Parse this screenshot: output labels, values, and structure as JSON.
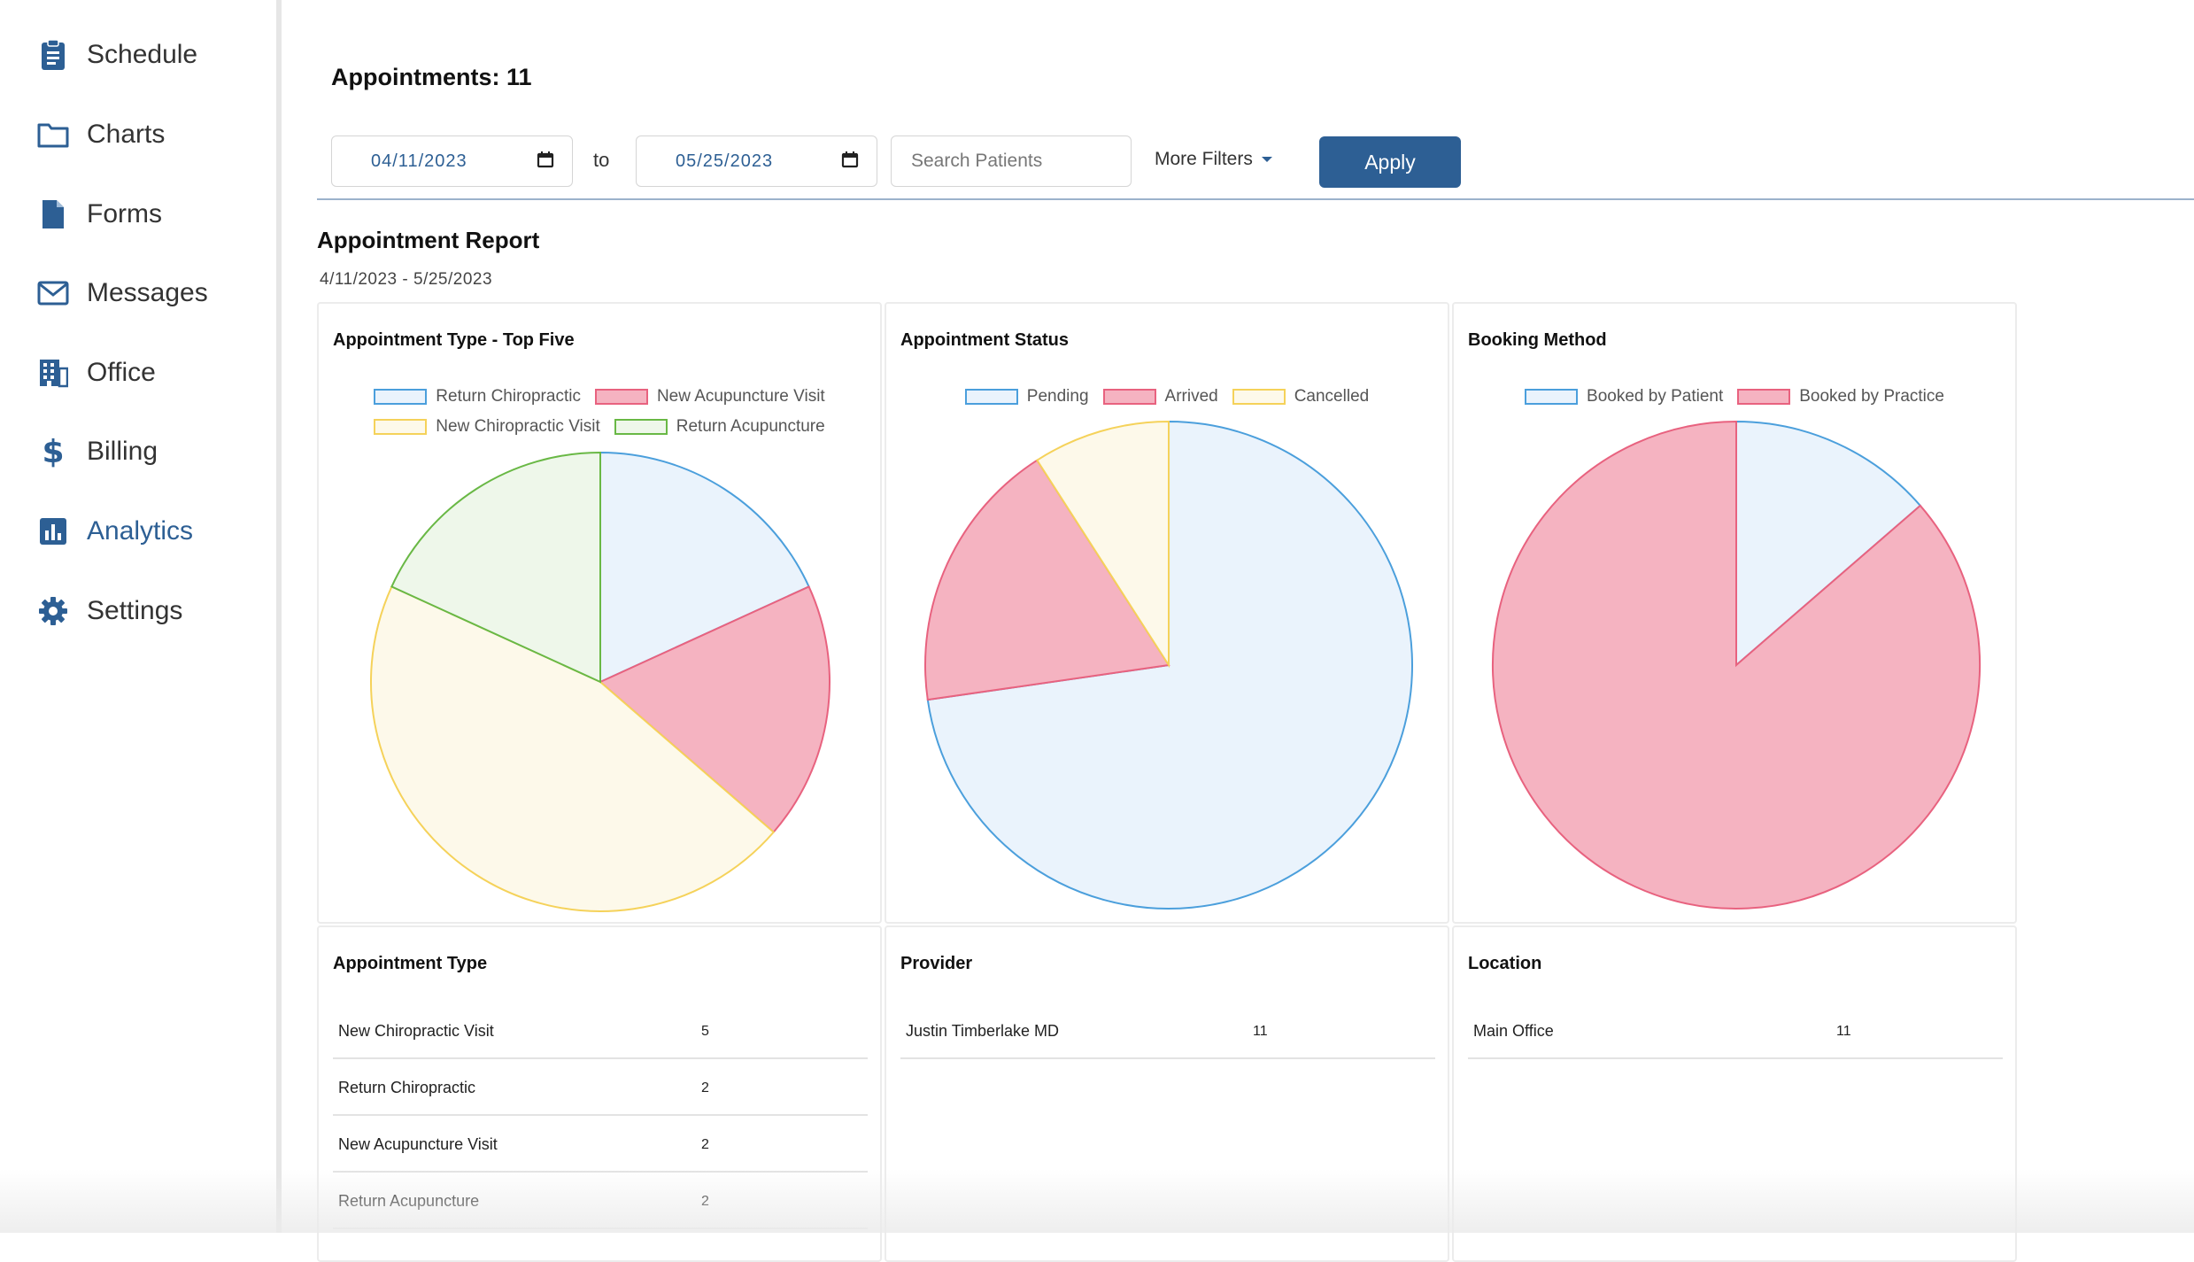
{
  "sidebar": {
    "items": [
      {
        "label": "Schedule",
        "icon": "clipboard-icon",
        "active": false
      },
      {
        "label": "Charts",
        "icon": "folder-icon",
        "active": false
      },
      {
        "label": "Forms",
        "icon": "document-icon",
        "active": false
      },
      {
        "label": "Messages",
        "icon": "envelope-icon",
        "active": false
      },
      {
        "label": "Office",
        "icon": "building-icon",
        "active": false
      },
      {
        "label": "Billing",
        "icon": "dollar-icon",
        "active": false
      },
      {
        "label": "Analytics",
        "icon": "bar-chart-icon",
        "active": true
      },
      {
        "label": "Settings",
        "icon": "gear-icon",
        "active": false
      }
    ]
  },
  "header": {
    "title": "Appointments: 11"
  },
  "filters": {
    "start_date": "04/11/2023",
    "to_label": "to",
    "end_date": "05/25/2023",
    "search_placeholder": "Search Patients",
    "more_filters_label": "More Filters",
    "apply_label": "Apply"
  },
  "report": {
    "title": "Appointment Report",
    "range": "4/11/2023 - 5/25/2023"
  },
  "colors": {
    "accent": "#2d5f94",
    "blue_fill": "#eaf3fc",
    "blue_stroke": "#4b9fdc",
    "pink_fill": "#f5b3c1",
    "pink_stroke": "#e8627f",
    "yellow_fill": "#fdf9ea",
    "yellow_stroke": "#f5d25a",
    "green_fill": "#eef7ea",
    "green_stroke": "#69b845"
  },
  "chart_data": [
    {
      "type": "pie",
      "title": "Appointment Type - Top Five",
      "legend": [
        "Return Chiropractic",
        "New Acupuncture Visit",
        "New Chiropractic Visit",
        "Return Acupuncture"
      ],
      "values": [
        2,
        2,
        5,
        2
      ],
      "colors": [
        "blue",
        "pink",
        "yellow",
        "green"
      ]
    },
    {
      "type": "pie",
      "title": "Appointment Status",
      "legend": [
        "Pending",
        "Arrived",
        "Cancelled"
      ],
      "values": [
        8,
        2,
        1
      ],
      "colors": [
        "blue",
        "pink",
        "yellow"
      ]
    },
    {
      "type": "pie",
      "title": "Booking Method",
      "legend": [
        "Booked by Patient",
        "Booked by Practice"
      ],
      "values": [
        1.5,
        9.5
      ],
      "colors": [
        "blue",
        "pink"
      ]
    }
  ],
  "tables": {
    "appointment_type": {
      "title": "Appointment Type",
      "rows": [
        {
          "name": "New Chiropractic Visit",
          "count": "5"
        },
        {
          "name": "Return Chiropractic",
          "count": "2"
        },
        {
          "name": "New Acupuncture Visit",
          "count": "2"
        },
        {
          "name": "Return Acupuncture",
          "count": "2"
        }
      ]
    },
    "provider": {
      "title": "Provider",
      "rows": [
        {
          "name": "Justin Timberlake MD",
          "count": "11"
        }
      ]
    },
    "location": {
      "title": "Location",
      "rows": [
        {
          "name": "Main Office",
          "count": "11"
        }
      ]
    }
  }
}
